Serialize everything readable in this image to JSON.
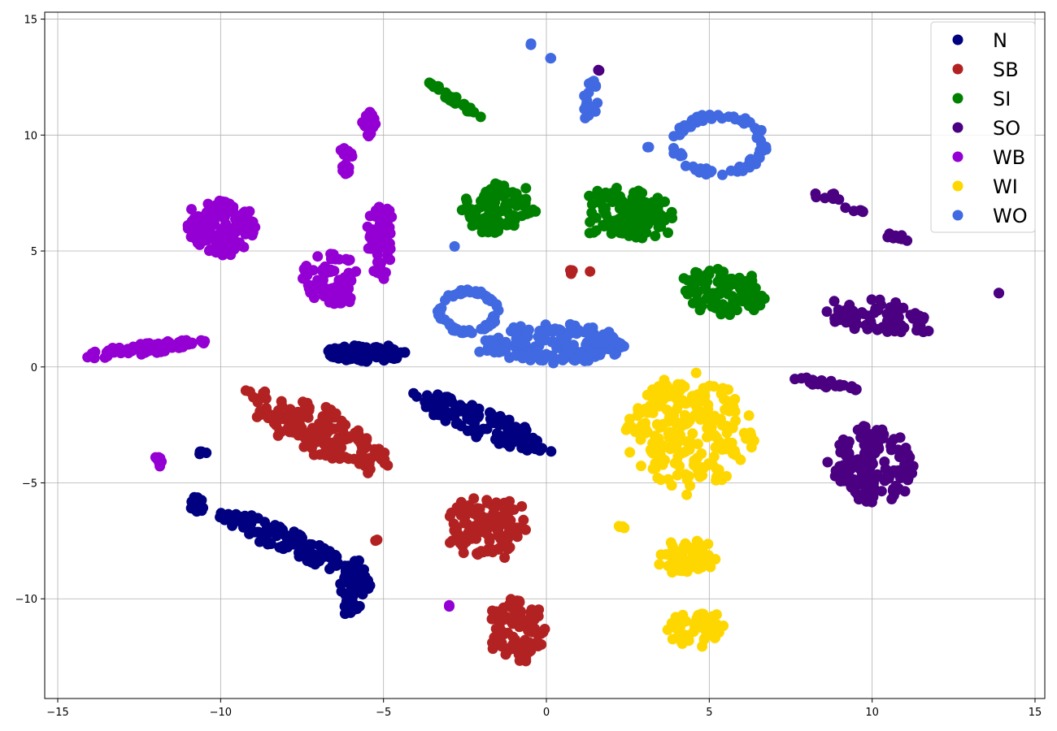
{
  "chart_data": {
    "type": "scatter",
    "title": "",
    "xlabel": "",
    "ylabel": "",
    "xlim": [
      -15.4,
      15.3
    ],
    "ylim": [
      -14.3,
      15.3
    ],
    "grid": true,
    "legend_position": "top-right",
    "x_ticks": [
      -15,
      -10,
      -5,
      0,
      5,
      10,
      15
    ],
    "x_tick_labels": [
      "−15",
      "−10",
      "−5",
      "0",
      "5",
      "10",
      "15"
    ],
    "y_ticks": [
      -10,
      -5,
      0,
      5,
      10,
      15
    ],
    "y_tick_labels": [
      "−10",
      "−5",
      "0",
      "5",
      "10",
      "15"
    ],
    "series": [
      {
        "name": "N",
        "color": "#000080",
        "clusters": [
          {
            "shape": "blob",
            "cx": -5.5,
            "cy": 0.6,
            "rx": 1.4,
            "ry": 0.35,
            "n": 100,
            "rot": 0
          },
          {
            "shape": "blob",
            "cx": -2.0,
            "cy": -2.4,
            "rx": 2.3,
            "ry": 0.55,
            "n": 120,
            "rot": -30
          },
          {
            "shape": "blob",
            "cx": -8.0,
            "cy": -7.5,
            "rx": 2.4,
            "ry": 0.45,
            "n": 110,
            "rot": -32
          },
          {
            "shape": "blob",
            "cx": -5.9,
            "cy": -9.5,
            "rx": 0.45,
            "ry": 1.1,
            "n": 60,
            "rot": 0
          },
          {
            "shape": "blob",
            "cx": -10.7,
            "cy": -5.9,
            "rx": 0.3,
            "ry": 0.4,
            "n": 12,
            "rot": 0
          },
          {
            "shape": "blob",
            "cx": -10.6,
            "cy": -3.7,
            "rx": 0.15,
            "ry": 0.08,
            "n": 4,
            "rot": 0
          }
        ]
      },
      {
        "name": "SB",
        "color": "#b22222",
        "clusters": [
          {
            "shape": "blob",
            "cx": -7.0,
            "cy": -2.8,
            "rx": 2.7,
            "ry": 0.9,
            "n": 160,
            "rot": -35
          },
          {
            "shape": "blob",
            "cx": -1.8,
            "cy": -6.9,
            "rx": 1.2,
            "ry": 1.3,
            "n": 110,
            "rot": 0
          },
          {
            "shape": "blob",
            "cx": -0.9,
            "cy": -11.3,
            "rx": 0.9,
            "ry": 1.3,
            "n": 90,
            "rot": 0
          },
          {
            "shape": "blob",
            "cx": 0.8,
            "cy": 4.1,
            "rx": 0.6,
            "ry": 0.1,
            "n": 4,
            "rot": 0
          },
          {
            "shape": "blob",
            "cx": -5.2,
            "cy": -7.5,
            "rx": 0.05,
            "ry": 0.05,
            "n": 2,
            "rot": 0
          }
        ]
      },
      {
        "name": "SI",
        "color": "#008000",
        "clusters": [
          {
            "shape": "blob",
            "cx": -2.8,
            "cy": 11.5,
            "rx": 1.2,
            "ry": 0.12,
            "n": 40,
            "rot": -45
          },
          {
            "shape": "blob",
            "cx": -1.5,
            "cy": 6.8,
            "rx": 1.1,
            "ry": 1.0,
            "n": 90,
            "rot": 0
          },
          {
            "shape": "blob",
            "cx": 2.5,
            "cy": 6.6,
            "rx": 1.4,
            "ry": 1.1,
            "n": 120,
            "rot": -15
          },
          {
            "shape": "blob",
            "cx": 5.5,
            "cy": 3.2,
            "rx": 1.4,
            "ry": 0.9,
            "n": 100,
            "rot": -20
          }
        ]
      },
      {
        "name": "SO",
        "color": "#4b0082",
        "clusters": [
          {
            "shape": "blob",
            "cx": 10.0,
            "cy": -4.2,
            "rx": 1.3,
            "ry": 1.6,
            "n": 140,
            "rot": 0
          },
          {
            "shape": "blob",
            "cx": 8.5,
            "cy": -0.7,
            "rx": 1.0,
            "ry": 0.2,
            "n": 25,
            "rot": -15
          },
          {
            "shape": "blob",
            "cx": 10.3,
            "cy": 2.1,
            "rx": 1.6,
            "ry": 0.7,
            "n": 80,
            "rot": -10
          },
          {
            "shape": "blob",
            "cx": 8.5,
            "cy": 7.4,
            "rx": 0.5,
            "ry": 0.2,
            "n": 8,
            "rot": -20
          },
          {
            "shape": "blob",
            "cx": 9.5,
            "cy": 6.8,
            "rx": 0.4,
            "ry": 0.1,
            "n": 6,
            "rot": -15
          },
          {
            "shape": "blob",
            "cx": 10.8,
            "cy": 5.6,
            "rx": 0.6,
            "ry": 0.15,
            "n": 10,
            "rot": -15
          },
          {
            "shape": "blob",
            "cx": 13.9,
            "cy": 3.2,
            "rx": 0.02,
            "ry": 0.02,
            "n": 2,
            "rot": 0
          },
          {
            "shape": "blob",
            "cx": 1.6,
            "cy": 12.8,
            "rx": 0.05,
            "ry": 0.05,
            "n": 2,
            "rot": 0
          }
        ]
      },
      {
        "name": "WB",
        "color": "#9400d3",
        "clusters": [
          {
            "shape": "blob",
            "cx": -10.0,
            "cy": 6.0,
            "rx": 1.0,
            "ry": 1.1,
            "n": 150,
            "rot": 0
          },
          {
            "shape": "blob",
            "cx": -6.6,
            "cy": 3.8,
            "rx": 0.9,
            "ry": 1.2,
            "n": 70,
            "rot": 0
          },
          {
            "shape": "blob",
            "cx": -5.1,
            "cy": 5.5,
            "rx": 0.4,
            "ry": 1.6,
            "n": 60,
            "rot": 0
          },
          {
            "shape": "blob",
            "cx": -5.4,
            "cy": 10.5,
            "rx": 0.3,
            "ry": 0.5,
            "n": 20,
            "rot": 0
          },
          {
            "shape": "blob",
            "cx": -6.2,
            "cy": 8.8,
            "rx": 0.25,
            "ry": 0.7,
            "n": 18,
            "rot": 0
          },
          {
            "shape": "blob",
            "cx": -12.3,
            "cy": 0.8,
            "rx": 2.0,
            "ry": 0.25,
            "n": 70,
            "rot": 10
          },
          {
            "shape": "blob",
            "cx": -11.9,
            "cy": -4.0,
            "rx": 0.12,
            "ry": 0.3,
            "n": 8,
            "rot": 0
          },
          {
            "shape": "blob",
            "cx": -3.0,
            "cy": -10.3,
            "rx": 0.05,
            "ry": 0.05,
            "n": 2,
            "rot": 0
          }
        ]
      },
      {
        "name": "WI",
        "color": "#ffd700",
        "clusters": [
          {
            "shape": "blob",
            "cx": 4.4,
            "cy": -2.8,
            "rx": 1.9,
            "ry": 2.3,
            "n": 230,
            "rot": 0
          },
          {
            "shape": "blob",
            "cx": 4.3,
            "cy": -8.2,
            "rx": 0.9,
            "ry": 0.7,
            "n": 60,
            "rot": 0
          },
          {
            "shape": "blob",
            "cx": 4.6,
            "cy": -11.3,
            "rx": 0.9,
            "ry": 0.8,
            "n": 60,
            "rot": 0
          },
          {
            "shape": "blob",
            "cx": 2.3,
            "cy": -6.9,
            "rx": 0.15,
            "ry": 0.1,
            "n": 4,
            "rot": 0
          }
        ]
      },
      {
        "name": "WO",
        "color": "#4169e1",
        "clusters": [
          {
            "shape": "blob",
            "cx": 0.3,
            "cy": 1.0,
            "rx": 2.2,
            "ry": 0.8,
            "n": 180,
            "rot": 0
          },
          {
            "shape": "ring",
            "cx": -2.4,
            "cy": 2.4,
            "rx": 0.9,
            "ry": 0.9,
            "n": 60,
            "rot": 0
          },
          {
            "shape": "ring",
            "cx": 5.3,
            "cy": 9.6,
            "rx": 1.4,
            "ry": 1.3,
            "n": 80,
            "rot": 0
          },
          {
            "shape": "blob",
            "cx": 1.3,
            "cy": 11.6,
            "rx": 0.3,
            "ry": 0.9,
            "n": 18,
            "rot": 0
          },
          {
            "shape": "blob",
            "cx": -0.5,
            "cy": 13.9,
            "rx": 0.05,
            "ry": 0.05,
            "n": 2,
            "rot": 0
          },
          {
            "shape": "blob",
            "cx": 0.1,
            "cy": 13.3,
            "rx": 0.05,
            "ry": 0.05,
            "n": 2,
            "rot": 0
          },
          {
            "shape": "blob",
            "cx": 3.1,
            "cy": 9.5,
            "rx": 0.05,
            "ry": 0.05,
            "n": 2,
            "rot": 0
          },
          {
            "shape": "blob",
            "cx": -2.8,
            "cy": 5.2,
            "rx": 0.02,
            "ry": 0.02,
            "n": 1,
            "rot": 0
          }
        ]
      }
    ]
  }
}
